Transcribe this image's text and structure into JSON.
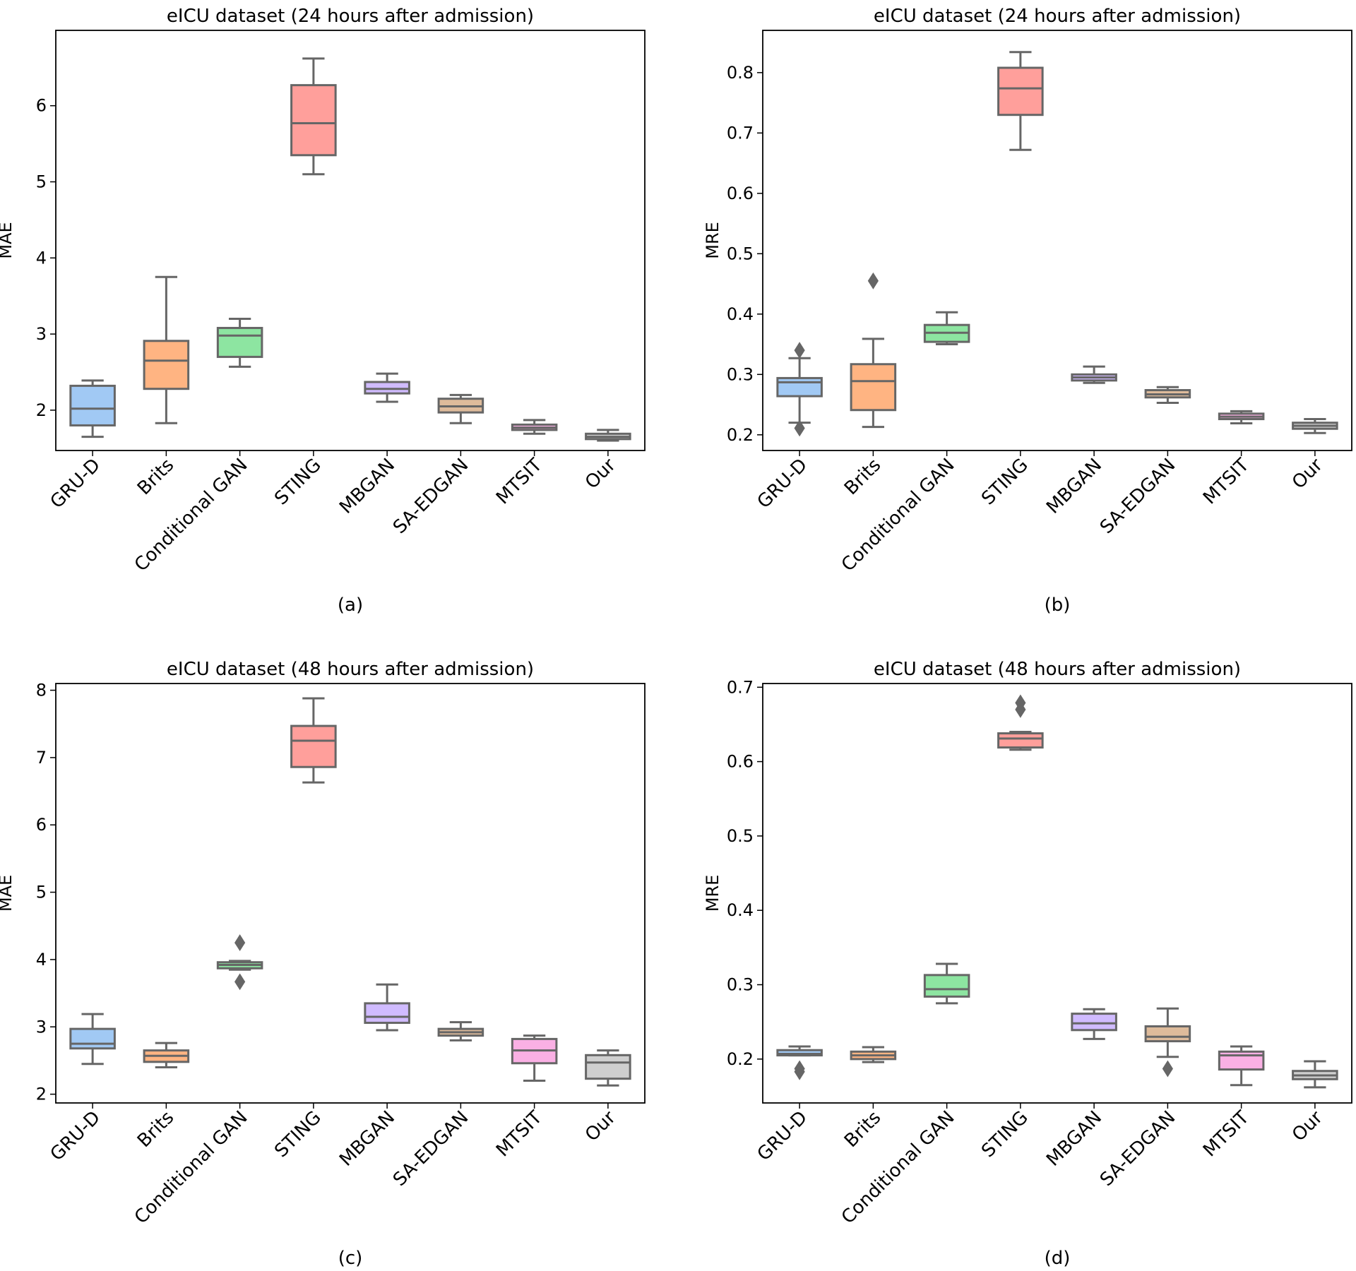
{
  "chart_data": [
    {
      "type": "box",
      "title": "eICU dataset (24 hours after admission)",
      "caption": "(a)",
      "ylabel": "MAE",
      "ylim": [
        1.47,
        6.99
      ],
      "yticks": [
        2,
        3,
        4,
        5,
        6
      ],
      "categories": [
        "GRU-D",
        "Brits",
        "Conditional GAN",
        "STING",
        "MBGAN",
        "SA-EDGAN",
        "MTSIT",
        "Our"
      ],
      "colors": [
        "#a1c9f4",
        "#ffb482",
        "#8de5a1",
        "#ff9f9b",
        "#d0bbff",
        "#debb9b",
        "#fab0e4",
        "#cfcfcf"
      ],
      "boxes": [
        {
          "min": 1.65,
          "q1": 1.8,
          "median": 2.02,
          "q3": 2.32,
          "max": 2.39,
          "fliers": []
        },
        {
          "min": 1.83,
          "q1": 2.28,
          "median": 2.65,
          "q3": 2.91,
          "max": 3.75,
          "fliers": []
        },
        {
          "min": 2.57,
          "q1": 2.7,
          "median": 2.98,
          "q3": 3.08,
          "max": 3.2,
          "fliers": []
        },
        {
          "min": 5.1,
          "q1": 5.35,
          "median": 5.77,
          "q3": 6.27,
          "max": 6.62,
          "fliers": []
        },
        {
          "min": 2.11,
          "q1": 2.22,
          "median": 2.28,
          "q3": 2.37,
          "max": 2.48,
          "fliers": []
        },
        {
          "min": 1.83,
          "q1": 1.97,
          "median": 2.05,
          "q3": 2.15,
          "max": 2.2,
          "fliers": []
        },
        {
          "min": 1.69,
          "q1": 1.74,
          "median": 1.77,
          "q3": 1.81,
          "max": 1.87,
          "fliers": []
        },
        {
          "min": 1.6,
          "q1": 1.62,
          "median": 1.65,
          "q3": 1.69,
          "max": 1.74,
          "fliers": []
        }
      ]
    },
    {
      "type": "box",
      "title": "eICU dataset (24 hours after admission)",
      "caption": "(b)",
      "ylabel": "MRE",
      "ylim": [
        0.174,
        0.87
      ],
      "yticks": [
        0.2,
        0.3,
        0.4,
        0.5,
        0.6,
        0.7,
        0.8
      ],
      "categories": [
        "GRU-D",
        "Brits",
        "Conditional GAN",
        "STING",
        "MBGAN",
        "SA-EDGAN",
        "MTSIT",
        "Our"
      ],
      "colors": [
        "#a1c9f4",
        "#ffb482",
        "#8de5a1",
        "#ff9f9b",
        "#d0bbff",
        "#debb9b",
        "#fab0e4",
        "#cfcfcf"
      ],
      "boxes": [
        {
          "min": 0.22,
          "q1": 0.264,
          "median": 0.287,
          "q3": 0.294,
          "max": 0.327,
          "fliers": [
            0.211,
            0.34
          ]
        },
        {
          "min": 0.213,
          "q1": 0.241,
          "median": 0.289,
          "q3": 0.317,
          "max": 0.359,
          "fliers": [
            0.455
          ]
        },
        {
          "min": 0.35,
          "q1": 0.354,
          "median": 0.369,
          "q3": 0.382,
          "max": 0.403,
          "fliers": []
        },
        {
          "min": 0.672,
          "q1": 0.73,
          "median": 0.774,
          "q3": 0.808,
          "max": 0.834,
          "fliers": []
        },
        {
          "min": 0.286,
          "q1": 0.29,
          "median": 0.295,
          "q3": 0.3,
          "max": 0.313,
          "fliers": []
        },
        {
          "min": 0.253,
          "q1": 0.262,
          "median": 0.267,
          "q3": 0.274,
          "max": 0.279,
          "fliers": []
        },
        {
          "min": 0.219,
          "q1": 0.226,
          "median": 0.23,
          "q3": 0.235,
          "max": 0.239,
          "fliers": []
        },
        {
          "min": 0.203,
          "q1": 0.21,
          "median": 0.215,
          "q3": 0.22,
          "max": 0.226,
          "fliers": []
        }
      ]
    },
    {
      "type": "box",
      "title": "eICU dataset (48 hours after admission)",
      "caption": "(c)",
      "ylabel": "MAE",
      "ylim": [
        1.87,
        8.1
      ],
      "yticks": [
        2,
        3,
        4,
        5,
        6,
        7,
        8
      ],
      "categories": [
        "GRU-D",
        "Brits",
        "Conditional GAN",
        "STING",
        "MBGAN",
        "SA-EDGAN",
        "MTSIT",
        "Our"
      ],
      "colors": [
        "#a1c9f4",
        "#ffb482",
        "#8de5a1",
        "#ff9f9b",
        "#d0bbff",
        "#debb9b",
        "#fab0e4",
        "#cfcfcf"
      ],
      "boxes": [
        {
          "min": 2.45,
          "q1": 2.68,
          "median": 2.75,
          "q3": 2.97,
          "max": 3.19,
          "fliers": []
        },
        {
          "min": 2.4,
          "q1": 2.48,
          "median": 2.57,
          "q3": 2.65,
          "max": 2.76,
          "fliers": []
        },
        {
          "min": 3.85,
          "q1": 3.87,
          "median": 3.92,
          "q3": 3.96,
          "max": 3.98,
          "fliers": [
            4.25,
            3.67
          ]
        },
        {
          "min": 6.63,
          "q1": 6.86,
          "median": 7.25,
          "q3": 7.47,
          "max": 7.88,
          "fliers": []
        },
        {
          "min": 2.95,
          "q1": 3.06,
          "median": 3.15,
          "q3": 3.35,
          "max": 3.63,
          "fliers": []
        },
        {
          "min": 2.8,
          "q1": 2.87,
          "median": 2.92,
          "q3": 2.97,
          "max": 3.07,
          "fliers": []
        },
        {
          "min": 2.2,
          "q1": 2.46,
          "median": 2.65,
          "q3": 2.82,
          "max": 2.87,
          "fliers": []
        },
        {
          "min": 2.13,
          "q1": 2.23,
          "median": 2.47,
          "q3": 2.58,
          "max": 2.65,
          "fliers": []
        }
      ]
    },
    {
      "type": "box",
      "title": "eICU dataset (48 hours after admission)",
      "caption": "(d)",
      "ylabel": "MRE",
      "ylim": [
        0.141,
        0.705
      ],
      "yticks": [
        0.2,
        0.3,
        0.4,
        0.5,
        0.6,
        0.7
      ],
      "categories": [
        "GRU-D",
        "Brits",
        "Conditional GAN",
        "STING",
        "MBGAN",
        "SA-EDGAN",
        "MTSIT",
        "Our"
      ],
      "colors": [
        "#a1c9f4",
        "#ffb482",
        "#8de5a1",
        "#ff9f9b",
        "#d0bbff",
        "#debb9b",
        "#fab0e4",
        "#cfcfcf"
      ],
      "boxes": [
        {
          "min": 0.205,
          "q1": 0.205,
          "median": 0.207,
          "q3": 0.212,
          "max": 0.217,
          "fliers": [
            0.183,
            0.187
          ]
        },
        {
          "min": 0.196,
          "q1": 0.2,
          "median": 0.205,
          "q3": 0.21,
          "max": 0.216,
          "fliers": []
        },
        {
          "min": 0.275,
          "q1": 0.284,
          "median": 0.294,
          "q3": 0.313,
          "max": 0.328,
          "fliers": []
        },
        {
          "min": 0.616,
          "q1": 0.619,
          "median": 0.631,
          "q3": 0.638,
          "max": 0.64,
          "fliers": [
            0.67,
            0.679
          ]
        },
        {
          "min": 0.227,
          "q1": 0.239,
          "median": 0.248,
          "q3": 0.261,
          "max": 0.267,
          "fliers": []
        },
        {
          "min": 0.203,
          "q1": 0.224,
          "median": 0.23,
          "q3": 0.244,
          "max": 0.268,
          "fliers": [
            0.187
          ]
        },
        {
          "min": 0.165,
          "q1": 0.186,
          "median": 0.205,
          "q3": 0.21,
          "max": 0.217,
          "fliers": []
        },
        {
          "min": 0.162,
          "q1": 0.173,
          "median": 0.178,
          "q3": 0.184,
          "max": 0.197,
          "fliers": []
        }
      ]
    }
  ]
}
